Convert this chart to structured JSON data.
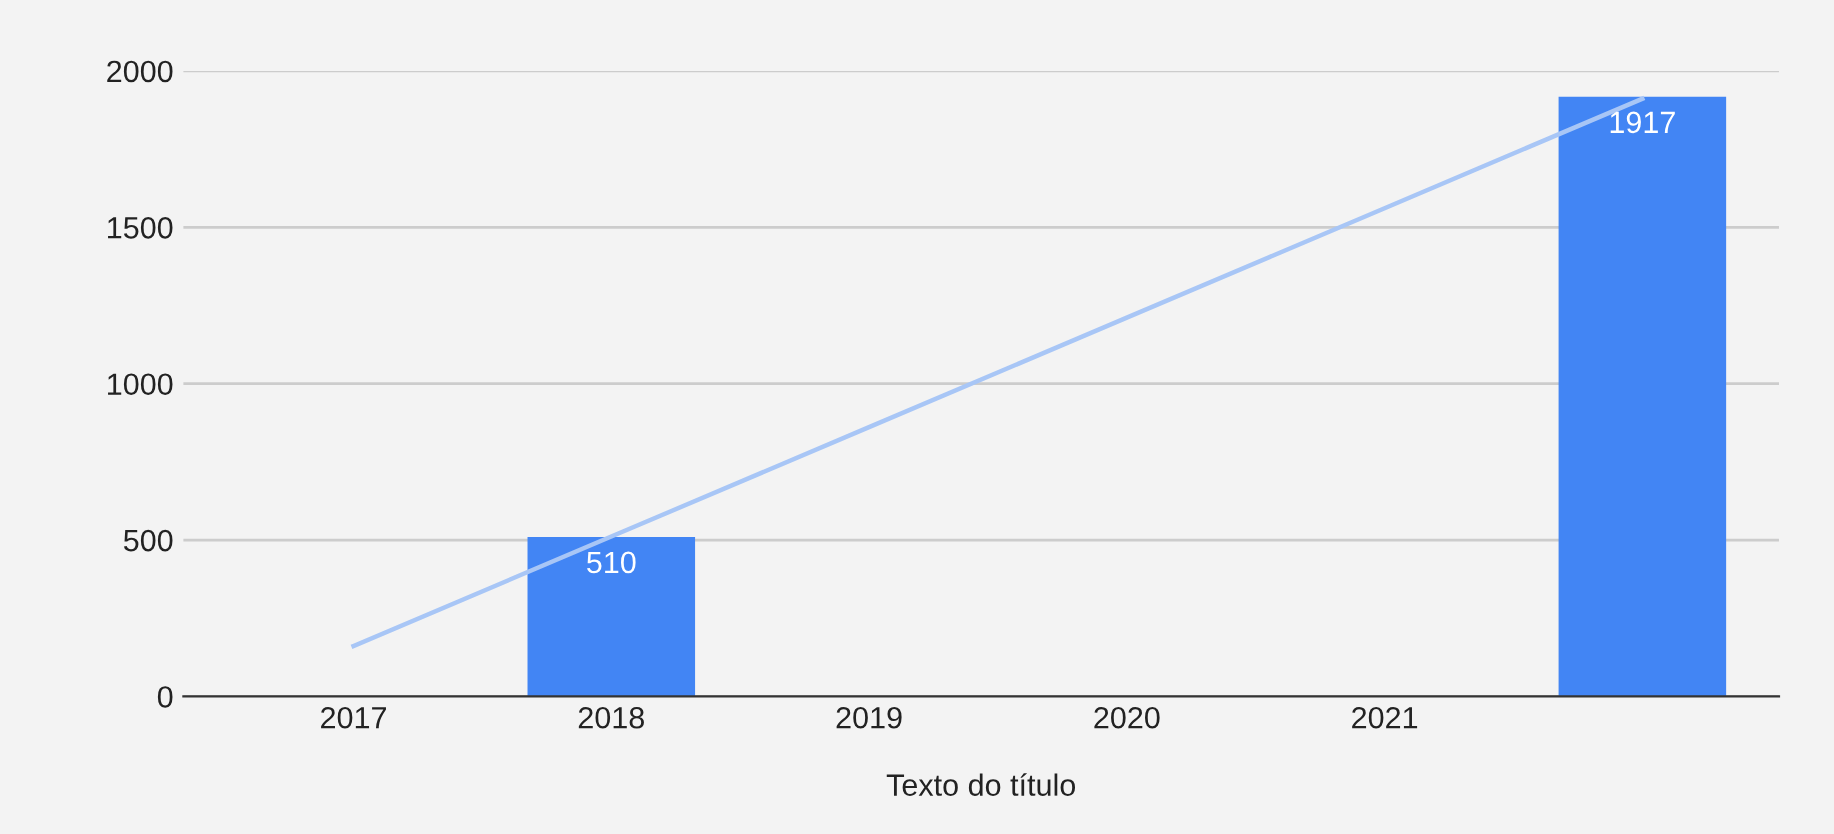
{
  "chart_data": {
    "type": "bar",
    "xlabel": "Texto do título",
    "categories": [
      "2017",
      "2018",
      "2019",
      "2020",
      "2021",
      null
    ],
    "series": [
      {
        "color": "#4285f4",
        "values": [
          null,
          510,
          null,
          null,
          null,
          1917
        ],
        "value_labels": [
          null,
          "510",
          null,
          null,
          null,
          "1917"
        ]
      },
      {
        "type": "line",
        "color": "#a8c6f6",
        "values": [
          161,
          511,
          861,
          1211,
          1561,
          1911
        ]
      }
    ],
    "ylim": [
      0,
      2000
    ],
    "yticks": [
      0,
      500,
      1000,
      1500,
      2000
    ],
    "grid": "y",
    "legend": false
  }
}
